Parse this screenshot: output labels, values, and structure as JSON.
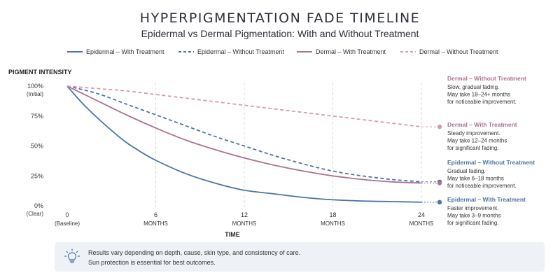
{
  "chart_data": {
    "type": "line",
    "title": "HYPERPIGMENTATION FADE TIMELINE",
    "subtitle": "Epidermal vs Dermal Pigmentation: With and Without Treatment",
    "ylabel": "PIGMENT INTENSITY",
    "xlabel": "TIME",
    "ylim": [
      0,
      100
    ],
    "xlim": [
      0,
      24
    ],
    "y_ticks": [
      {
        "value": 100,
        "label": "100%",
        "sublabel": "(Initial)"
      },
      {
        "value": 75,
        "label": "75%",
        "sublabel": ""
      },
      {
        "value": 50,
        "label": "50%",
        "sublabel": ""
      },
      {
        "value": 25,
        "label": "25%",
        "sublabel": ""
      },
      {
        "value": 0,
        "label": "0%",
        "sublabel": "(Clear)"
      }
    ],
    "x_ticks": [
      {
        "value": 0,
        "label": "0",
        "sublabel": "(Baseline)"
      },
      {
        "value": 6,
        "label": "6",
        "sublabel": "MONTHS"
      },
      {
        "value": 12,
        "label": "12",
        "sublabel": "MONTHS"
      },
      {
        "value": 18,
        "label": "18",
        "sublabel": "MONTHS"
      },
      {
        "value": 24,
        "label": "24",
        "sublabel": "MONTHS"
      }
    ],
    "vertical_gridlines_at": [
      6,
      12,
      18,
      24
    ],
    "grid": "vertical dashed",
    "legend_position": "top",
    "series": [
      {
        "name": "Epidermal – With Treatment",
        "color": "#4a74a5",
        "dash": false,
        "x": [
          0,
          1,
          2,
          3,
          4,
          5,
          6,
          8,
          10,
          12,
          14,
          16,
          18,
          20,
          22,
          24
        ],
        "y": [
          100,
          86,
          74,
          63,
          53,
          45,
          38,
          27,
          19,
          13,
          10,
          7,
          5,
          4,
          3.5,
          3
        ]
      },
      {
        "name": "Epidermal – Without Treatment",
        "color": "#4a74a5",
        "dash": true,
        "x": [
          0,
          2,
          4,
          6,
          8,
          10,
          12,
          14,
          16,
          18,
          20,
          22,
          24
        ],
        "y": [
          100,
          94,
          85,
          76,
          67,
          58,
          50,
          42,
          35,
          29,
          25,
          22,
          20
        ]
      },
      {
        "name": "Dermal – With Treatment",
        "color": "#ac7290",
        "dash": false,
        "x": [
          0,
          2,
          4,
          6,
          8,
          10,
          12,
          14,
          16,
          18,
          20,
          22,
          24
        ],
        "y": [
          100,
          88,
          76,
          65,
          55,
          47,
          40,
          34,
          29,
          25,
          22,
          20,
          19
        ]
      },
      {
        "name": "Dermal – Without Treatment",
        "color": "#d79aaf",
        "dash": true,
        "x": [
          0,
          2,
          4,
          6,
          8,
          10,
          12,
          14,
          16,
          18,
          20,
          22,
          24
        ],
        "y": [
          100,
          98,
          96,
          93,
          90,
          87,
          84,
          81,
          78,
          75,
          72,
          69,
          66
        ]
      }
    ],
    "annotations": [
      {
        "series": "Dermal – Without Treatment",
        "color": "#ac7290",
        "title": "Dermal – Without Treatment",
        "lines": [
          "Slow, gradual fading.",
          "May take 18–24+ months",
          "for noticeable improvement."
        ]
      },
      {
        "series": "Dermal – With Treatment",
        "color": "#ac7290",
        "title": "Dermal – With Treatment",
        "lines": [
          "Steady improvement.",
          "May take 12–24 months",
          "for significant fading."
        ]
      },
      {
        "series": "Epidermal – Without Treatment",
        "color": "#4a74a5",
        "title": "Epidermal – Without Treatment",
        "lines": [
          "Gradual fading.",
          "May take 6–18 months",
          "for noticeable improvement."
        ]
      },
      {
        "series": "Epidermal – With Treatment",
        "color": "#4a74a5",
        "title": "Epidermal – With Treatment",
        "lines": [
          "Faster improvement.",
          "May take 3–9 months",
          "for significant fading."
        ]
      }
    ]
  },
  "note": {
    "icon": "lightbulb-icon",
    "line1": "Results vary depending on depth, cause, skin type, and consistency of care.",
    "line2": "Sun protection is essential for best outcomes."
  }
}
